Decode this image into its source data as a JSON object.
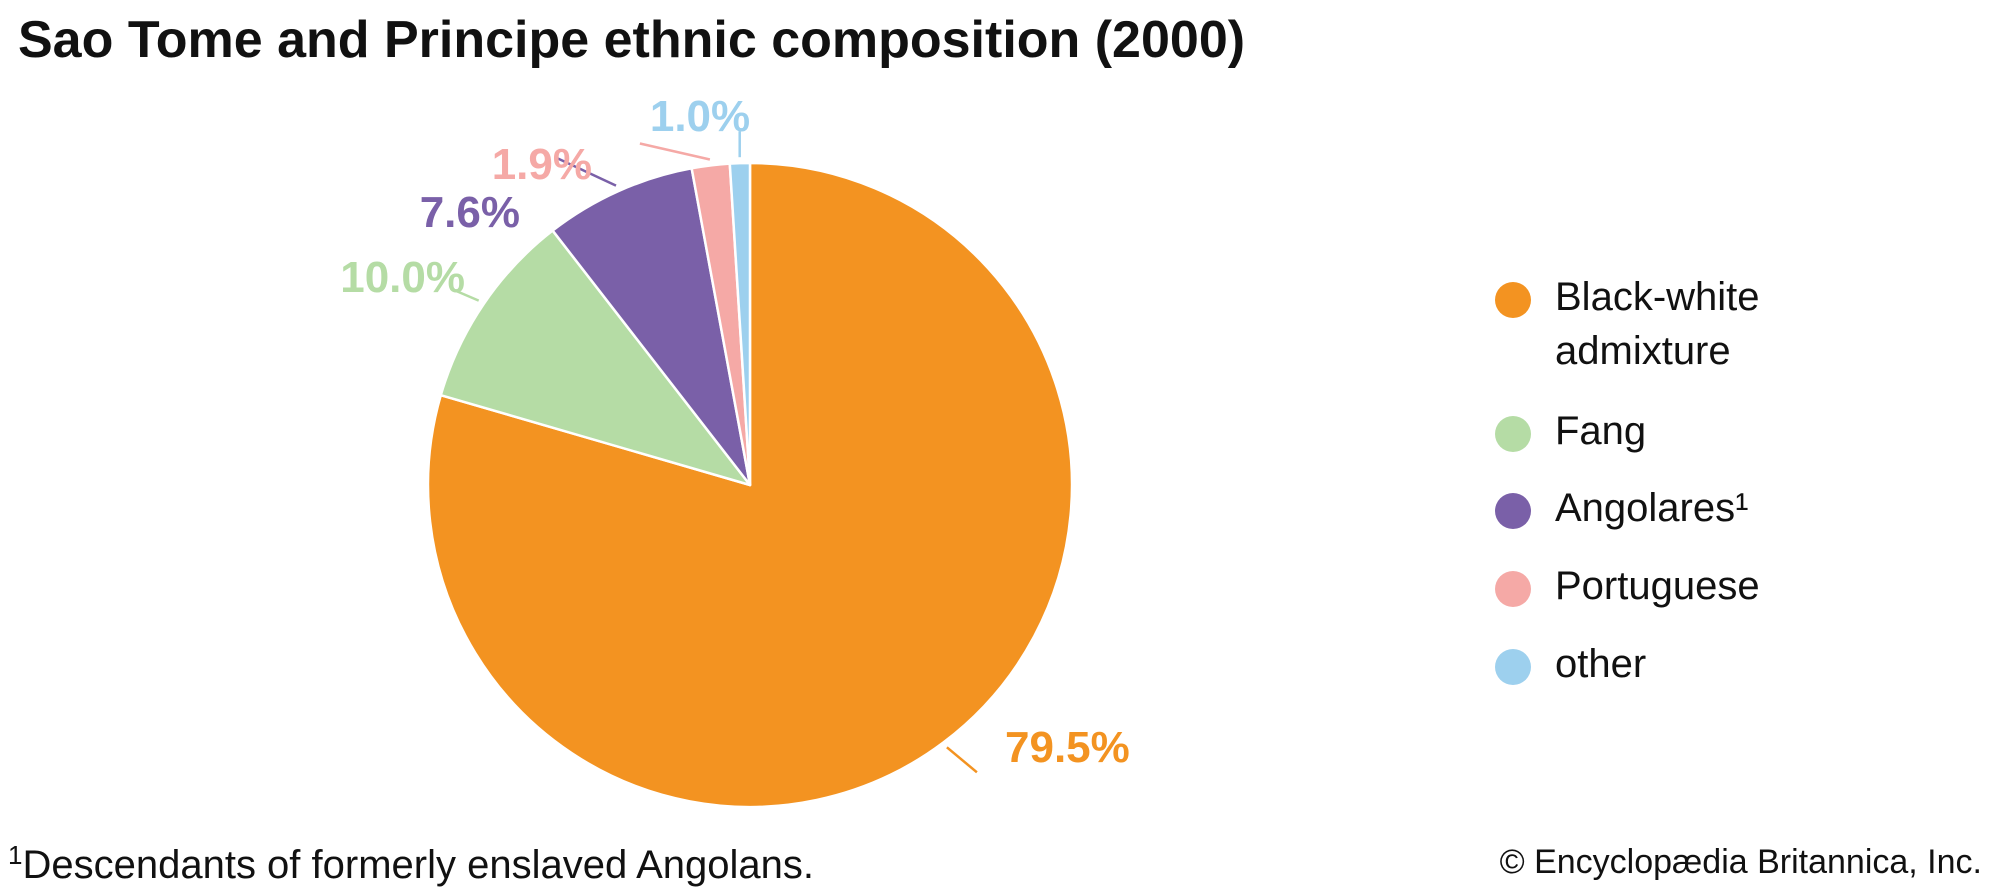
{
  "chart_data": {
    "type": "pie",
    "title": "Sao Tome and Principe ethnic composition (2000)",
    "slices": [
      {
        "name": "Black-white admixture",
        "legend_label": "Black-white\nadmixture",
        "value": 79.5,
        "label": "79.5%",
        "color": "#F39321"
      },
      {
        "name": "Fang",
        "legend_label": "Fang",
        "value": 10.0,
        "label": "10.0%",
        "color": "#B5DCA5"
      },
      {
        "name": "Angolares",
        "legend_label": "Angolares¹",
        "value": 7.6,
        "label": "7.6%",
        "color": "#7A60A8"
      },
      {
        "name": "Portuguese",
        "legend_label": "Portuguese",
        "value": 1.9,
        "label": "1.9%",
        "color": "#F5A9A6"
      },
      {
        "name": "other",
        "legend_label": "other",
        "value": 1.0,
        "label": "1.0%",
        "color": "#9DD0EE"
      }
    ],
    "legend_position": "right",
    "direction": "clockwise from top"
  },
  "footnote": {
    "marker": "1",
    "text": "Descendants of formerly enslaved Angolans."
  },
  "credit": "© Encyclopædia Britannica, Inc."
}
